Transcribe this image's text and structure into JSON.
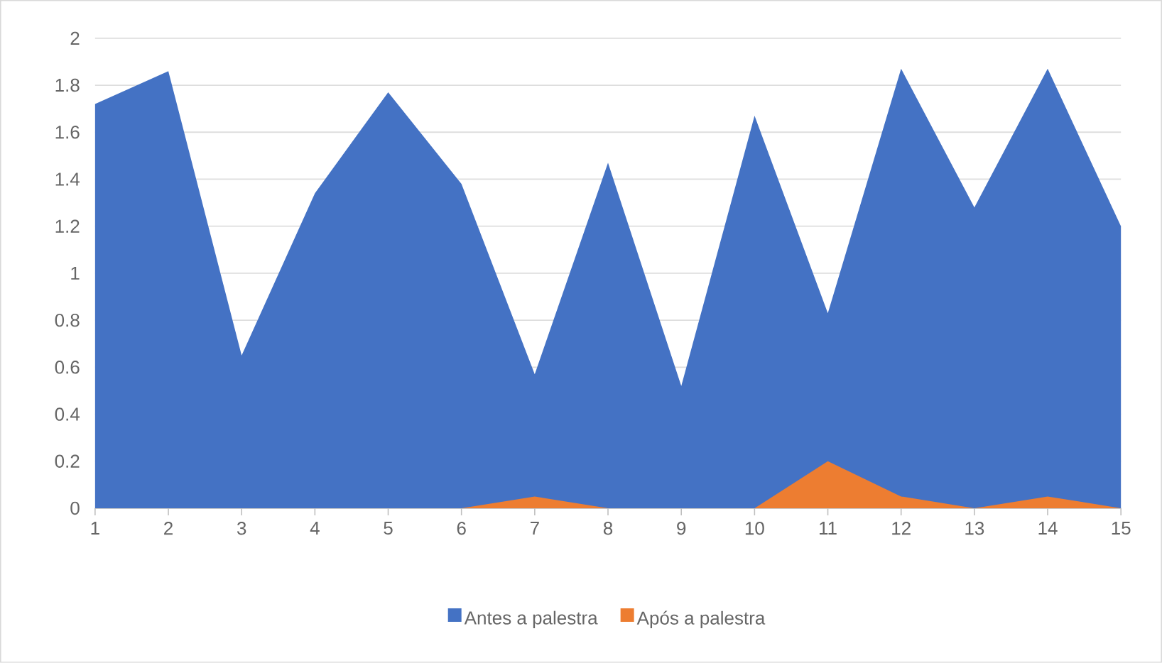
{
  "chart_data": {
    "type": "area",
    "categories": [
      "1",
      "2",
      "3",
      "4",
      "5",
      "6",
      "7",
      "8",
      "9",
      "10",
      "11",
      "12",
      "13",
      "14",
      "15"
    ],
    "series": [
      {
        "name": "Antes a palestra",
        "color": "#4472c4",
        "values": [
          1.72,
          1.86,
          0.65,
          1.34,
          1.77,
          1.38,
          0.57,
          1.47,
          0.52,
          1.67,
          0.83,
          1.87,
          1.28,
          1.87,
          1.2
        ]
      },
      {
        "name": "Após a palestra",
        "color": "#ed7d31",
        "values": [
          0,
          0,
          0,
          0,
          0,
          0,
          0.05,
          0,
          0,
          0,
          0.2,
          0.05,
          0,
          0.05,
          0
        ]
      }
    ],
    "ylim": [
      0,
      2
    ],
    "yticks": [
      0,
      0.2,
      0.4,
      0.6,
      0.8,
      1,
      1.2,
      1.4,
      1.6,
      1.8,
      2
    ],
    "grid": "y",
    "legend": "bottom"
  }
}
